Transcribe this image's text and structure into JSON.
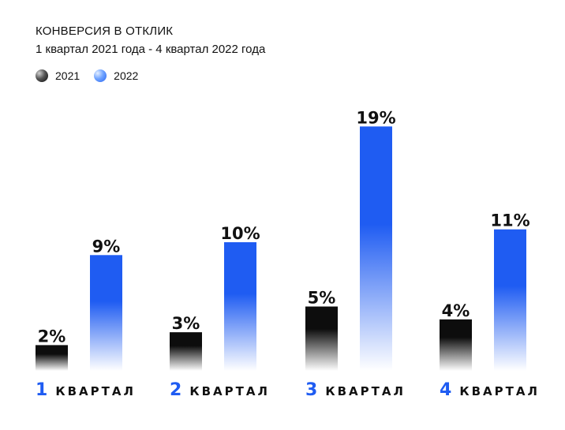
{
  "chart_data": {
    "type": "bar",
    "title": "КОНВЕРСИЯ В ОТКЛИК",
    "subtitle": "1 квартал 2021 года - 4 квартал 2022 года",
    "categories": [
      {
        "num": "1",
        "word": "КВАРТАЛ"
      },
      {
        "num": "2",
        "word": "КВАРТАЛ"
      },
      {
        "num": "3",
        "word": "КВАРТАЛ"
      },
      {
        "num": "4",
        "word": "КВАРТАЛ"
      }
    ],
    "series": [
      {
        "name": "2021",
        "values": [
          2,
          3,
          5,
          4
        ],
        "labels": [
          "2%",
          "3%",
          "5%",
          "4%"
        ],
        "color_top": "#0d0d0d",
        "color_bottom": "#ffffff"
      },
      {
        "name": "2022",
        "values": [
          9,
          10,
          19,
          11
        ],
        "labels": [
          "9%",
          "10%",
          "19%",
          "11%"
        ],
        "color_top": "#1f5cf2",
        "color_bottom": "#ffffff"
      }
    ],
    "unit": "%",
    "ylim": [
      0,
      20
    ],
    "grid": false,
    "legend": "top-left"
  }
}
